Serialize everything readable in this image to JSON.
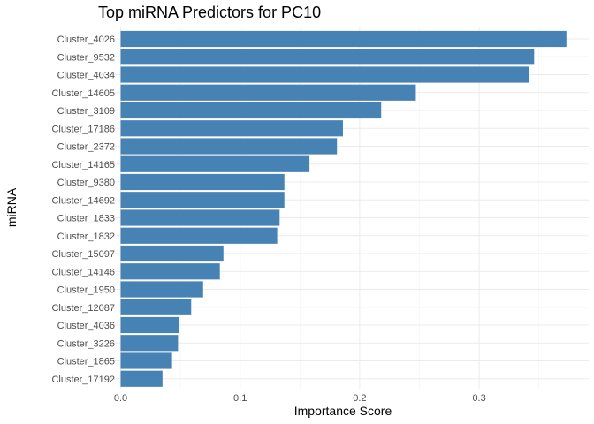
{
  "chart_data": {
    "type": "bar",
    "orientation": "horizontal",
    "title": "Top miRNA Predictors for PC10",
    "xlabel": "Importance Score",
    "ylabel": "miRNA",
    "xlim": [
      0,
      0.375
    ],
    "xticks": [
      0.0,
      0.1,
      0.2,
      0.3
    ],
    "xtick_labels": [
      "0.0",
      "0.1",
      "0.2",
      "0.3"
    ],
    "grid": true,
    "bar_color": "#4682B4",
    "categories": [
      "Cluster_4026",
      "Cluster_9532",
      "Cluster_4034",
      "Cluster_14605",
      "Cluster_3109",
      "Cluster_17186",
      "Cluster_2372",
      "Cluster_14165",
      "Cluster_9380",
      "Cluster_14692",
      "Cluster_1833",
      "Cluster_1832",
      "Cluster_15097",
      "Cluster_14146",
      "Cluster_1950",
      "Cluster_12087",
      "Cluster_4036",
      "Cluster_3226",
      "Cluster_1865",
      "Cluster_17192"
    ],
    "values": [
      0.373,
      0.346,
      0.342,
      0.247,
      0.218,
      0.186,
      0.181,
      0.158,
      0.137,
      0.137,
      0.133,
      0.131,
      0.086,
      0.083,
      0.069,
      0.059,
      0.049,
      0.048,
      0.043,
      0.035
    ]
  }
}
